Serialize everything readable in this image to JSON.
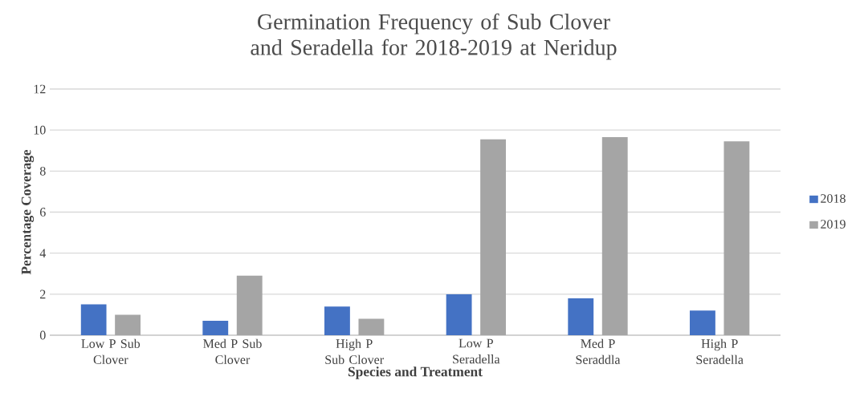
{
  "chart_data": {
    "type": "bar",
    "title": "Germination Frequency of Sub Clover and Seradella for 2018-2019 at Neridup",
    "xlabel": "Species and Treatment",
    "ylabel": "Percentage Coverage",
    "categories": [
      "Low P Sub Clover",
      "Med P Sub Clover",
      "High P Sub Clover",
      "Low P Seradella",
      "Med P Seraddla",
      "High P Seradella"
    ],
    "series": [
      {
        "name": "2018",
        "color": "#4472c4",
        "values": [
          1.5,
          0.7,
          1.4,
          2.0,
          1.8,
          1.2
        ]
      },
      {
        "name": "2019",
        "color": "#a5a5a5",
        "values": [
          1.0,
          2.9,
          0.8,
          9.55,
          9.65,
          9.45
        ]
      }
    ],
    "ylim": [
      0,
      12
    ],
    "yticks": [
      0,
      2,
      4,
      6,
      8,
      10,
      12
    ],
    "grid": "y",
    "legend": "right"
  }
}
